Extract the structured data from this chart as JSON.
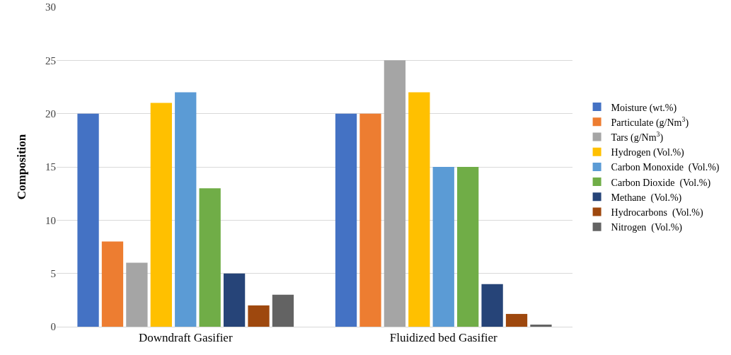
{
  "chart_data": {
    "type": "bar",
    "ylabel": "Composition",
    "categories": [
      "Downdraft Gasifier",
      "Fluidized bed Gasifier"
    ],
    "series": [
      {
        "name": "Moisture (wt.%)",
        "color": "#4472c4",
        "values": [
          20,
          20
        ]
      },
      {
        "name": "Particulate (g/Nm$^{3}$)",
        "color": "#ed7d31",
        "values": [
          8,
          20
        ]
      },
      {
        "name": "Tars (g/Nm$^{3}$)",
        "color": "#a5a5a5",
        "values": [
          6,
          25
        ]
      },
      {
        "name": "Hydrogen (Vol.%)",
        "color": "#ffc000",
        "values": [
          21,
          22
        ]
      },
      {
        "name": "Carbon Monoxide  (Vol.%)",
        "color": "#5b9bd5",
        "values": [
          22,
          15
        ]
      },
      {
        "name": "Carbon Dioxide  (Vol.%)",
        "color": "#70ad47",
        "values": [
          13,
          15
        ]
      },
      {
        "name": "Methane  (Vol.%)",
        "color": "#264478",
        "values": [
          5,
          4
        ]
      },
      {
        "name": "Hydrocarbons  (Vol.%)",
        "color": "#9e480e",
        "values": [
          2,
          1.2
        ]
      },
      {
        "name": "Nitrogen  (Vol.%)",
        "color": "#636363",
        "values": [
          3,
          0.2
        ]
      }
    ],
    "ylim": [
      0,
      30
    ],
    "yticks": [
      0,
      5,
      10,
      15,
      20,
      25,
      30
    ],
    "grid": "y",
    "legend": "right"
  }
}
